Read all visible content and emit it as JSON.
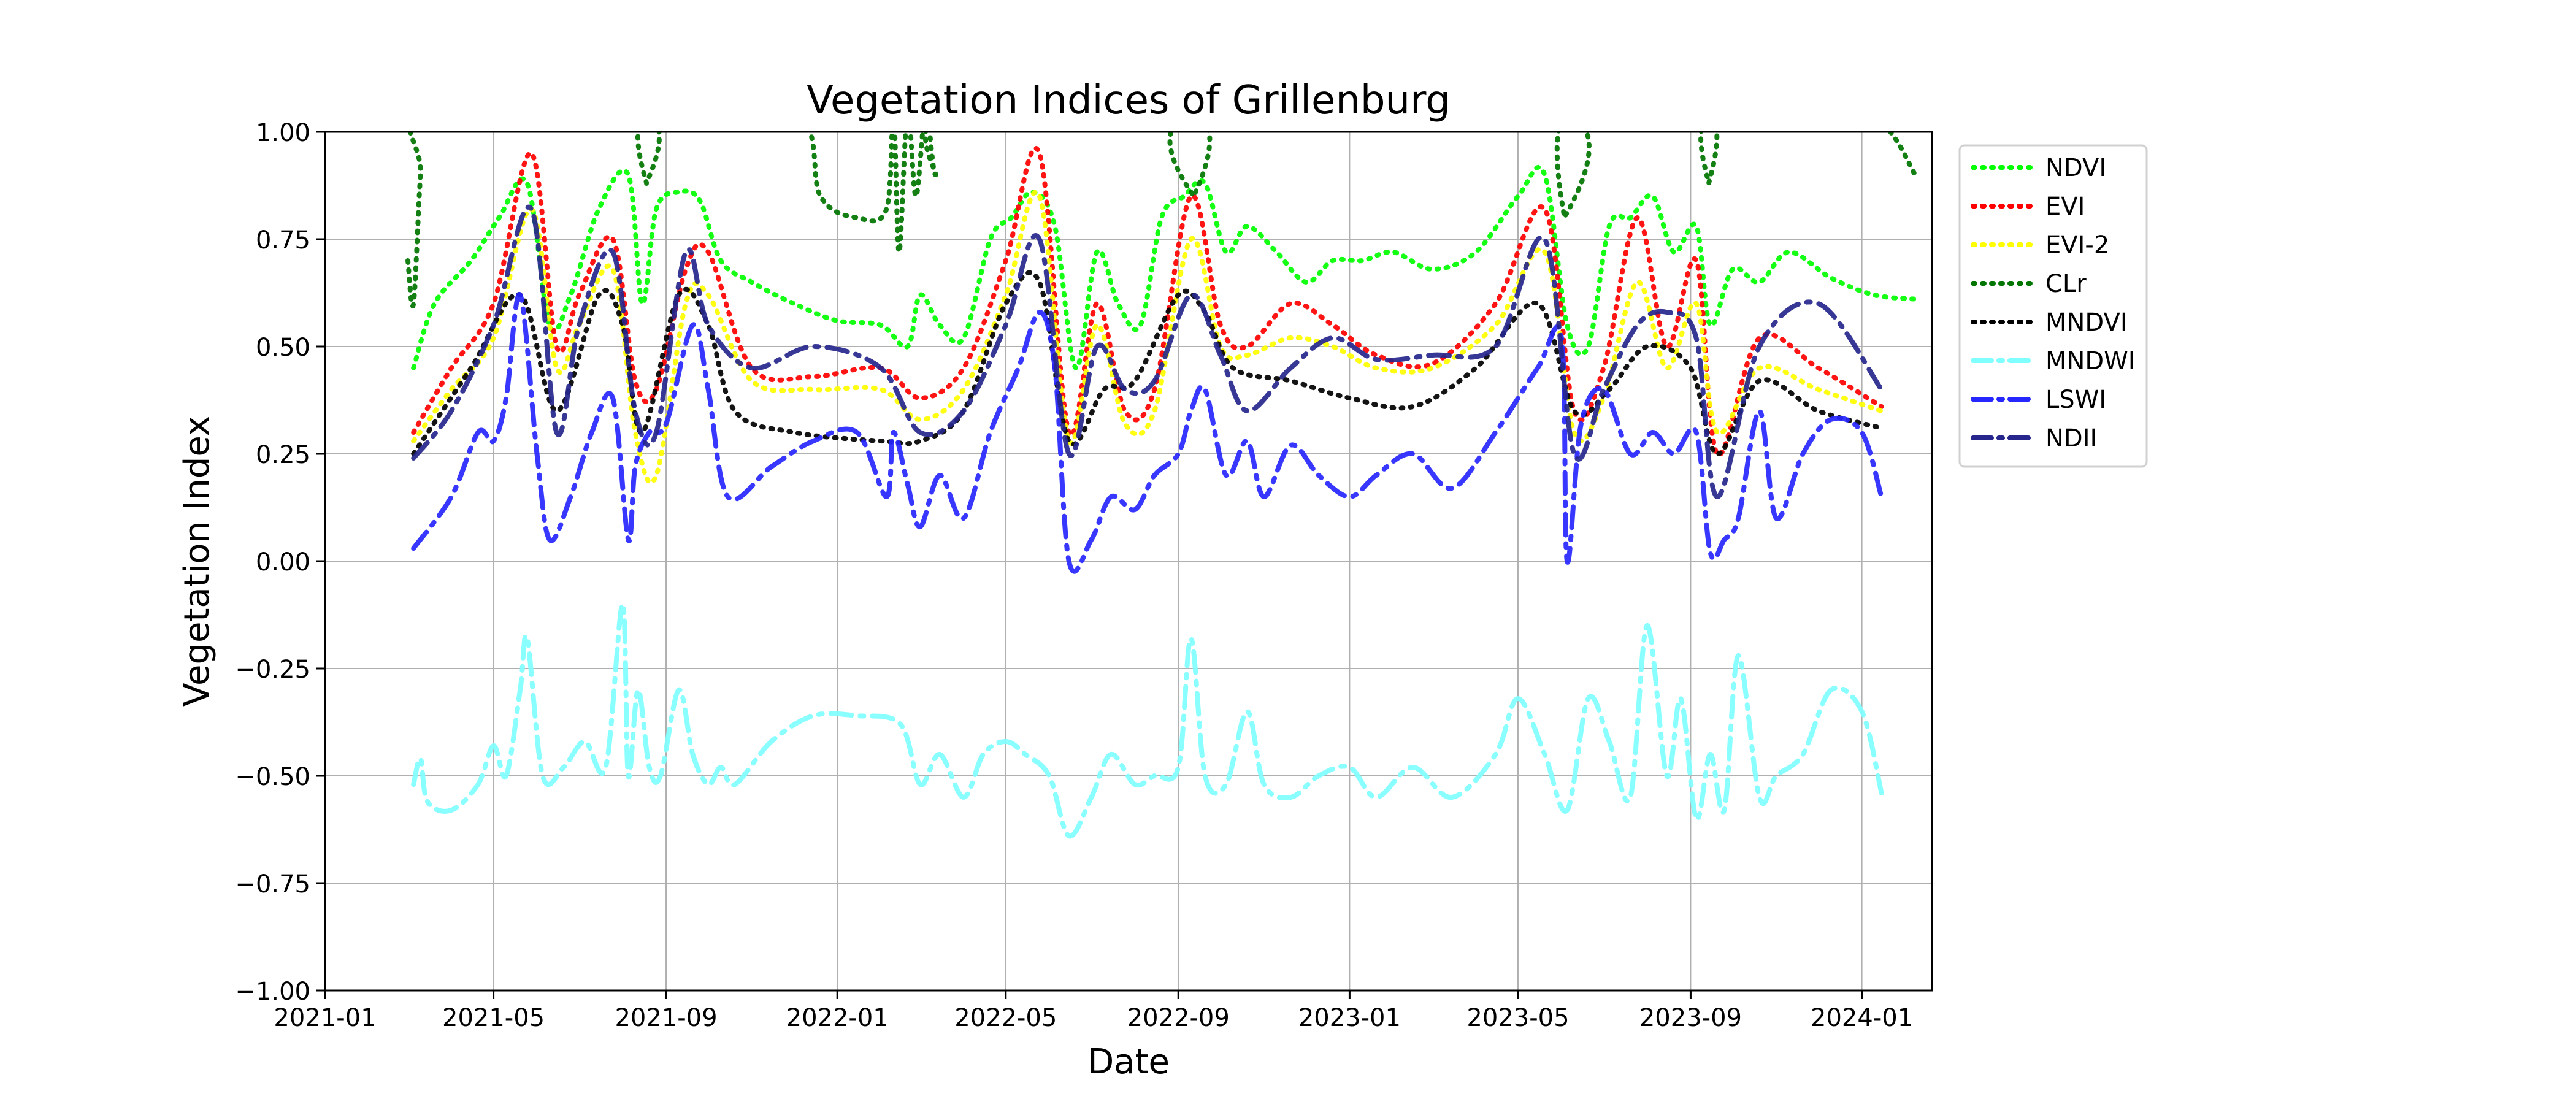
{
  "chart_data": {
    "type": "line",
    "title": "Vegetation Indices of Grillenburg",
    "xlabel": "Date",
    "ylabel": "Vegetation Index",
    "ylim": [
      -1.0,
      1.0
    ],
    "xlim": [
      "2021-01-01",
      "2024-02-20"
    ],
    "yticks": [
      -1.0,
      -0.75,
      -0.5,
      -0.25,
      0.0,
      0.25,
      0.5,
      0.75,
      1.0
    ],
    "ytick_labels": [
      "−1.00",
      "−0.75",
      "−0.50",
      "−0.25",
      "0.00",
      "0.25",
      "0.50",
      "0.75",
      "1.00"
    ],
    "xtick_labels": [
      "2021-01",
      "2021-05",
      "2021-09",
      "2022-01",
      "2022-05",
      "2022-09",
      "2023-01",
      "2023-05",
      "2023-09",
      "2024-01"
    ],
    "xticks": [
      "2021-01-01",
      "2021-05-01",
      "2021-09-01",
      "2022-01-01",
      "2022-05-01",
      "2022-09-01",
      "2023-01-01",
      "2023-05-01",
      "2023-09-01",
      "2024-01-01"
    ],
    "grid": true,
    "legend_position": "outside-right-top",
    "series": [
      {
        "name": "NDVI",
        "color": "#00ff00",
        "dash": "dotted",
        "x": [
          "2021-03-05",
          "2021-03-20",
          "2021-04-15",
          "2021-05-05",
          "2021-05-25",
          "2021-06-10",
          "2021-06-25",
          "2021-07-15",
          "2021-08-05",
          "2021-08-15",
          "2021-08-25",
          "2021-09-10",
          "2021-09-25",
          "2021-10-10",
          "2021-11-01",
          "2021-12-01",
          "2022-01-01",
          "2022-02-01",
          "2022-02-20",
          "2022-03-01",
          "2022-03-15",
          "2022-04-01",
          "2022-04-20",
          "2022-05-05",
          "2022-05-20",
          "2022-06-05",
          "2022-06-20",
          "2022-07-05",
          "2022-07-20",
          "2022-08-05",
          "2022-08-20",
          "2022-09-05",
          "2022-09-20",
          "2022-10-05",
          "2022-10-20",
          "2022-11-10",
          "2022-12-01",
          "2022-12-20",
          "2023-01-10",
          "2023-02-01",
          "2023-03-01",
          "2023-04-01",
          "2023-05-01",
          "2023-05-20",
          "2023-06-05",
          "2023-06-20",
          "2023-07-05",
          "2023-07-20",
          "2023-08-05",
          "2023-08-20",
          "2023-09-05",
          "2023-09-15",
          "2023-10-01",
          "2023-10-20",
          "2023-11-10",
          "2023-12-10",
          "2024-01-10",
          "2024-02-10"
        ],
        "y": [
          0.45,
          0.6,
          0.7,
          0.8,
          0.88,
          0.55,
          0.62,
          0.82,
          0.9,
          0.6,
          0.82,
          0.86,
          0.84,
          0.7,
          0.65,
          0.6,
          0.56,
          0.55,
          0.5,
          0.62,
          0.55,
          0.52,
          0.75,
          0.8,
          0.86,
          0.78,
          0.45,
          0.72,
          0.6,
          0.55,
          0.8,
          0.85,
          0.88,
          0.72,
          0.78,
          0.72,
          0.65,
          0.7,
          0.7,
          0.72,
          0.68,
          0.72,
          0.85,
          0.9,
          0.55,
          0.5,
          0.78,
          0.8,
          0.85,
          0.72,
          0.78,
          0.55,
          0.68,
          0.65,
          0.72,
          0.66,
          0.62,
          0.61
        ]
      },
      {
        "name": "EVI",
        "color": "#ff0000",
        "dash": "dotted",
        "x": [
          "2021-03-05",
          "2021-04-01",
          "2021-05-01",
          "2021-05-28",
          "2021-06-15",
          "2021-07-01",
          "2021-07-25",
          "2021-08-10",
          "2021-08-25",
          "2021-09-15",
          "2021-10-01",
          "2021-11-01",
          "2021-12-15",
          "2022-02-01",
          "2022-03-01",
          "2022-04-01",
          "2022-05-01",
          "2022-05-25",
          "2022-06-15",
          "2022-07-05",
          "2022-07-25",
          "2022-08-15",
          "2022-09-10",
          "2022-10-01",
          "2022-10-20",
          "2022-11-20",
          "2022-12-20",
          "2023-01-20",
          "2023-03-01",
          "2023-04-15",
          "2023-05-20",
          "2023-06-10",
          "2023-07-01",
          "2023-07-25",
          "2023-08-15",
          "2023-09-05",
          "2023-09-20",
          "2023-10-20",
          "2023-12-01",
          "2024-01-15"
        ],
        "y": [
          0.3,
          0.45,
          0.6,
          0.95,
          0.5,
          0.62,
          0.75,
          0.42,
          0.4,
          0.68,
          0.72,
          0.45,
          0.43,
          0.45,
          0.38,
          0.45,
          0.7,
          0.95,
          0.3,
          0.6,
          0.35,
          0.4,
          0.85,
          0.55,
          0.5,
          0.6,
          0.55,
          0.48,
          0.46,
          0.6,
          0.82,
          0.35,
          0.45,
          0.8,
          0.5,
          0.7,
          0.25,
          0.52,
          0.45,
          0.36
        ]
      },
      {
        "name": "EVI-2",
        "color": "#ffff00",
        "dash": "dotted",
        "x": [
          "2021-03-05",
          "2021-04-01",
          "2021-05-01",
          "2021-05-28",
          "2021-06-15",
          "2021-07-01",
          "2021-07-25",
          "2021-08-10",
          "2021-08-25",
          "2021-09-15",
          "2021-10-01",
          "2021-11-01",
          "2021-12-15",
          "2022-02-01",
          "2022-03-01",
          "2022-04-01",
          "2022-05-01",
          "2022-05-25",
          "2022-06-15",
          "2022-07-05",
          "2022-07-25",
          "2022-08-15",
          "2022-09-10",
          "2022-10-01",
          "2022-10-20",
          "2022-11-20",
          "2022-12-20",
          "2023-01-20",
          "2023-03-01",
          "2023-04-15",
          "2023-05-20",
          "2023-06-10",
          "2023-07-01",
          "2023-07-25",
          "2023-08-15",
          "2023-09-05",
          "2023-09-20",
          "2023-10-20",
          "2023-12-01",
          "2024-01-15"
        ],
        "y": [
          0.28,
          0.4,
          0.52,
          0.82,
          0.45,
          0.55,
          0.68,
          0.3,
          0.2,
          0.6,
          0.62,
          0.42,
          0.4,
          0.4,
          0.33,
          0.4,
          0.62,
          0.85,
          0.28,
          0.55,
          0.32,
          0.35,
          0.75,
          0.5,
          0.48,
          0.52,
          0.5,
          0.45,
          0.45,
          0.55,
          0.72,
          0.3,
          0.38,
          0.65,
          0.45,
          0.6,
          0.3,
          0.45,
          0.4,
          0.35
        ]
      },
      {
        "name": "CLr",
        "color": "#007500",
        "dash": "dotted",
        "x": [
          "2021-03-01",
          "2021-03-05",
          "2021-03-10",
          "2021-03-15",
          "2021-08-15",
          "2021-08-18",
          "2021-08-20",
          "2021-12-01",
          "2021-12-20",
          "2022-01-15",
          "2022-02-05",
          "2022-02-10",
          "2022-02-14",
          "2022-02-20",
          "2022-02-26",
          "2022-03-05",
          "2022-03-12",
          "2022-03-20",
          "2022-09-10",
          "2022-09-12",
          "2022-09-15",
          "2023-06-01",
          "2023-06-03",
          "2023-06-06",
          "2023-09-12",
          "2023-09-14",
          "2023-09-17",
          "2024-01-01",
          "2024-02-10"
        ],
        "y": [
          0.7,
          0.6,
          0.9,
          1.05,
          1.05,
          0.88,
          1.05,
          1.05,
          0.85,
          0.8,
          0.82,
          1.05,
          0.72,
          1.05,
          0.85,
          1.05,
          0.9,
          1.05,
          1.05,
          0.85,
          1.05,
          1.05,
          0.8,
          1.05,
          1.05,
          0.88,
          1.05,
          1.05,
          0.89
        ]
      },
      {
        "name": "MNDVI",
        "color": "#000000",
        "dash": "dotted",
        "x": [
          "2021-03-05",
          "2021-04-15",
          "2021-05-20",
          "2021-06-15",
          "2021-07-15",
          "2021-08-01",
          "2021-08-15",
          "2021-09-10",
          "2021-10-01",
          "2021-10-20",
          "2021-12-01",
          "2022-02-01",
          "2022-03-01",
          "2022-04-01",
          "2022-05-01",
          "2022-05-25",
          "2022-06-15",
          "2022-07-10",
          "2022-08-01",
          "2022-09-01",
          "2022-09-20",
          "2022-10-10",
          "2022-11-20",
          "2023-01-01",
          "2023-02-15",
          "2023-04-01",
          "2023-05-15",
          "2023-06-10",
          "2023-07-05",
          "2023-08-01",
          "2023-09-01",
          "2023-09-20",
          "2023-10-20",
          "2023-12-01",
          "2024-01-15"
        ],
        "y": [
          0.25,
          0.45,
          0.62,
          0.35,
          0.62,
          0.55,
          0.3,
          0.62,
          0.55,
          0.35,
          0.3,
          0.28,
          0.28,
          0.35,
          0.6,
          0.65,
          0.28,
          0.4,
          0.42,
          0.62,
          0.58,
          0.45,
          0.42,
          0.38,
          0.36,
          0.45,
          0.6,
          0.35,
          0.4,
          0.5,
          0.45,
          0.25,
          0.42,
          0.35,
          0.31
        ]
      },
      {
        "name": "MNDWI",
        "color": "#7fffff",
        "dash": "dashdot",
        "x": [
          "2021-03-05",
          "2021-03-10",
          "2021-03-15",
          "2021-04-01",
          "2021-04-20",
          "2021-05-01",
          "2021-05-10",
          "2021-05-20",
          "2021-05-25",
          "2021-06-05",
          "2021-06-20",
          "2021-07-05",
          "2021-07-20",
          "2021-08-01",
          "2021-08-05",
          "2021-08-12",
          "2021-08-20",
          "2021-08-28",
          "2021-09-10",
          "2021-09-20",
          "2021-10-01",
          "2021-10-10",
          "2021-10-20",
          "2021-11-15",
          "2021-12-15",
          "2022-01-15",
          "2022-02-15",
          "2022-03-01",
          "2022-03-15",
          "2022-04-01",
          "2022-04-15",
          "2022-05-01",
          "2022-05-15",
          "2022-06-01",
          "2022-06-15",
          "2022-07-01",
          "2022-07-15",
          "2022-08-01",
          "2022-08-15",
          "2022-09-01",
          "2022-09-10",
          "2022-09-20",
          "2022-10-05",
          "2022-10-20",
          "2022-11-01",
          "2022-11-20",
          "2022-12-10",
          "2023-01-01",
          "2023-01-20",
          "2023-02-15",
          "2023-03-15",
          "2023-04-15",
          "2023-05-01",
          "2023-05-20",
          "2023-06-05",
          "2023-06-20",
          "2023-07-05",
          "2023-07-20",
          "2023-08-01",
          "2023-08-15",
          "2023-08-25",
          "2023-09-05",
          "2023-09-15",
          "2023-09-25",
          "2023-10-05",
          "2023-10-20",
          "2023-11-01",
          "2023-11-20",
          "2023-12-10",
          "2024-01-01",
          "2024-01-15"
        ],
        "y": [
          -0.52,
          -0.46,
          -0.56,
          -0.58,
          -0.52,
          -0.43,
          -0.5,
          -0.3,
          -0.18,
          -0.5,
          -0.48,
          -0.42,
          -0.48,
          -0.1,
          -0.5,
          -0.3,
          -0.48,
          -0.5,
          -0.3,
          -0.45,
          -0.52,
          -0.48,
          -0.52,
          -0.42,
          -0.36,
          -0.36,
          -0.38,
          -0.52,
          -0.45,
          -0.55,
          -0.45,
          -0.42,
          -0.45,
          -0.5,
          -0.64,
          -0.55,
          -0.45,
          -0.52,
          -0.5,
          -0.48,
          -0.18,
          -0.5,
          -0.52,
          -0.35,
          -0.52,
          -0.55,
          -0.5,
          -0.48,
          -0.55,
          -0.48,
          -0.55,
          -0.45,
          -0.32,
          -0.45,
          -0.58,
          -0.32,
          -0.42,
          -0.55,
          -0.15,
          -0.5,
          -0.32,
          -0.6,
          -0.45,
          -0.58,
          -0.22,
          -0.55,
          -0.5,
          -0.45,
          -0.3,
          -0.35,
          -0.54
        ]
      },
      {
        "name": "LSWI",
        "color": "#2626ff",
        "dash": "dashdot",
        "x": [
          "2021-03-05",
          "2021-04-01",
          "2021-04-20",
          "2021-05-01",
          "2021-05-10",
          "2021-05-20",
          "2021-06-01",
          "2021-06-10",
          "2021-06-25",
          "2021-07-10",
          "2021-07-25",
          "2021-08-05",
          "2021-08-10",
          "2021-08-20",
          "2021-09-01",
          "2021-09-20",
          "2021-10-01",
          "2021-10-15",
          "2021-11-15",
          "2021-12-15",
          "2022-01-15",
          "2022-02-05",
          "2022-02-10",
          "2022-02-20",
          "2022-03-01",
          "2022-03-15",
          "2022-04-01",
          "2022-04-20",
          "2022-05-10",
          "2022-05-25",
          "2022-06-05",
          "2022-06-15",
          "2022-07-01",
          "2022-07-15",
          "2022-08-01",
          "2022-08-15",
          "2022-09-01",
          "2022-09-10",
          "2022-09-20",
          "2022-10-05",
          "2022-10-20",
          "2022-11-01",
          "2022-11-20",
          "2022-12-10",
          "2023-01-01",
          "2023-01-20",
          "2023-02-15",
          "2023-03-15",
          "2023-04-15",
          "2023-05-15",
          "2023-06-01",
          "2023-06-05",
          "2023-06-15",
          "2023-07-01",
          "2023-07-20",
          "2023-08-05",
          "2023-08-20",
          "2023-09-05",
          "2023-09-15",
          "2023-09-25",
          "2023-10-05",
          "2023-10-20",
          "2023-11-01",
          "2023-11-20",
          "2023-12-10",
          "2024-01-01",
          "2024-01-15"
        ],
        "y": [
          0.03,
          0.15,
          0.3,
          0.28,
          0.38,
          0.62,
          0.25,
          0.05,
          0.15,
          0.3,
          0.38,
          0.05,
          0.22,
          0.3,
          0.32,
          0.55,
          0.4,
          0.15,
          0.22,
          0.28,
          0.3,
          0.15,
          0.3,
          0.18,
          0.08,
          0.2,
          0.1,
          0.3,
          0.45,
          0.58,
          0.45,
          0.0,
          0.05,
          0.15,
          0.12,
          0.2,
          0.25,
          0.35,
          0.4,
          0.2,
          0.28,
          0.15,
          0.27,
          0.2,
          0.15,
          0.2,
          0.25,
          0.17,
          0.3,
          0.45,
          0.52,
          0.0,
          0.32,
          0.4,
          0.25,
          0.3,
          0.25,
          0.3,
          0.02,
          0.05,
          0.1,
          0.35,
          0.1,
          0.25,
          0.33,
          0.3,
          0.15
        ]
      },
      {
        "name": "NDII",
        "color": "#26268c",
        "dash": "dashdot",
        "x": [
          "2021-03-05",
          "2021-04-01",
          "2021-05-01",
          "2021-05-28",
          "2021-06-15",
          "2021-07-01",
          "2021-07-25",
          "2021-08-10",
          "2021-08-25",
          "2021-09-15",
          "2021-10-01",
          "2021-11-01",
          "2021-12-15",
          "2022-02-01",
          "2022-03-01",
          "2022-04-01",
          "2022-05-01",
          "2022-05-25",
          "2022-06-15",
          "2022-07-05",
          "2022-07-25",
          "2022-08-15",
          "2022-09-10",
          "2022-10-01",
          "2022-10-20",
          "2022-11-20",
          "2022-12-20",
          "2023-01-20",
          "2023-03-01",
          "2023-04-15",
          "2023-05-20",
          "2023-06-10",
          "2023-07-01",
          "2023-07-25",
          "2023-08-15",
          "2023-09-05",
          "2023-09-20",
          "2023-10-20",
          "2023-12-01",
          "2024-01-15"
        ],
        "y": [
          0.24,
          0.35,
          0.55,
          0.82,
          0.3,
          0.55,
          0.72,
          0.35,
          0.3,
          0.72,
          0.55,
          0.45,
          0.5,
          0.45,
          0.3,
          0.35,
          0.55,
          0.75,
          0.25,
          0.5,
          0.4,
          0.42,
          0.62,
          0.48,
          0.35,
          0.45,
          0.52,
          0.47,
          0.48,
          0.5,
          0.75,
          0.25,
          0.4,
          0.55,
          0.58,
          0.52,
          0.15,
          0.5,
          0.6,
          0.4
        ]
      }
    ]
  }
}
